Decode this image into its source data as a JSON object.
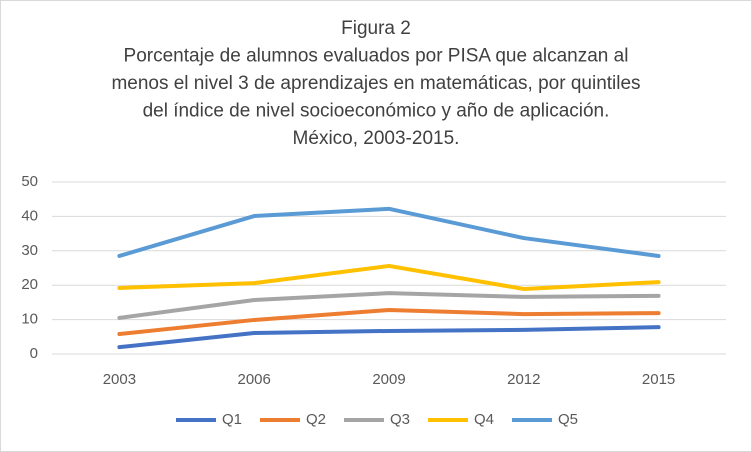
{
  "chart_data": {
    "type": "line",
    "title": [
      "Figura 2",
      "Porcentaje de alumnos evaluados por PISA que alcanzan al",
      "menos el nivel 3 de aprendizajes en matemáticas, por quintiles",
      "del índice de nivel socioeconómico y año de aplicación.",
      "México, 2003-2015."
    ],
    "categories": [
      "2003",
      "2006",
      "2009",
      "2012",
      "2015"
    ],
    "series": [
      {
        "name": "Q1",
        "color": "#4472c4",
        "values": [
          2.0,
          6.1,
          6.7,
          7.0,
          7.8
        ]
      },
      {
        "name": "Q2",
        "color": "#ed7d31",
        "values": [
          5.8,
          9.9,
          12.8,
          11.6,
          11.9
        ]
      },
      {
        "name": "Q3",
        "color": "#a5a5a5",
        "values": [
          10.5,
          15.7,
          17.7,
          16.6,
          16.9
        ]
      },
      {
        "name": "Q4",
        "color": "#ffc000",
        "values": [
          19.2,
          20.6,
          25.6,
          18.9,
          20.9
        ]
      },
      {
        "name": "Q5",
        "color": "#5b9bd5",
        "values": [
          28.5,
          40.1,
          42.2,
          33.7,
          28.5
        ]
      }
    ],
    "ylim": [
      0,
      50
    ],
    "yticks": [
      0,
      10,
      20,
      30,
      40,
      50
    ],
    "grid": true,
    "legend": "bottom"
  }
}
